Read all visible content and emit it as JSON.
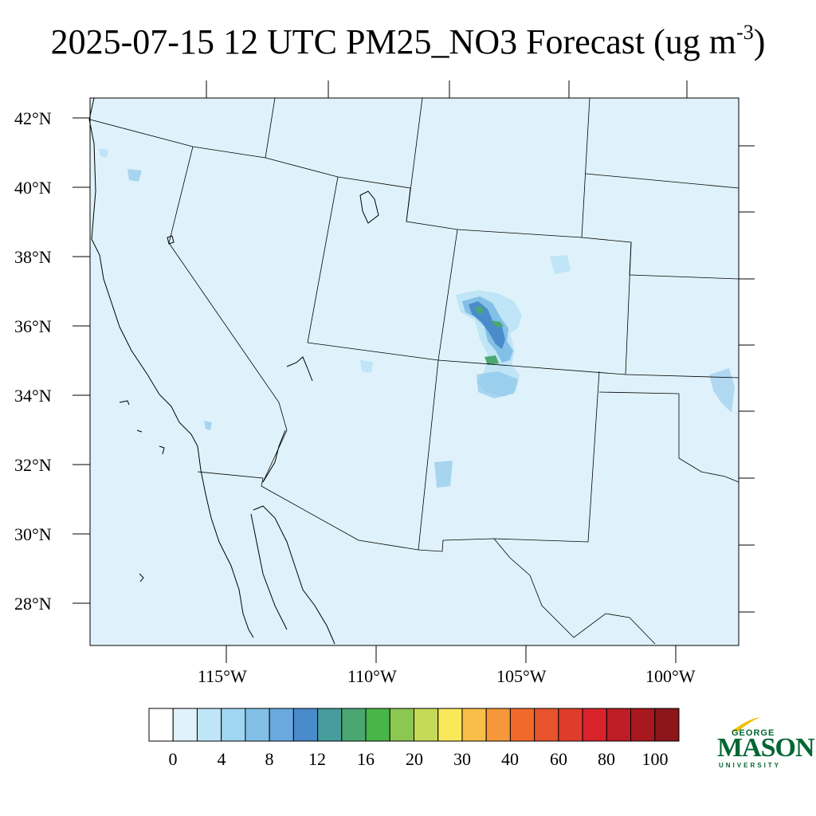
{
  "title": {
    "main": "2025-07-15 12 UTC PM25_NO3 Forecast (ug m",
    "exponent": "-3",
    "close": ")"
  },
  "lat_labels": [
    "42°N",
    "40°N",
    "38°N",
    "36°N",
    "34°N",
    "32°N",
    "30°N",
    "28°N"
  ],
  "lon_labels": [
    "115°W",
    "110°W",
    "105°W",
    "100°W"
  ],
  "colorbar": {
    "colors": [
      "#ffffff",
      "#dff2fb",
      "#bfe5f6",
      "#9fd7f3",
      "#82c0e7",
      "#6aa9df",
      "#4a8ccb",
      "#479c9c",
      "#4aa772",
      "#47b548",
      "#8cc751",
      "#c5da58",
      "#f8e95b",
      "#f8be49",
      "#f5973a",
      "#f26a2b",
      "#e6532c",
      "#e03c2d",
      "#d8232b",
      "#bd1d24",
      "#a8191f",
      "#8c161a"
    ],
    "labels": [
      "0",
      "4",
      "8",
      "12",
      "16",
      "20",
      "30",
      "40",
      "60",
      "80",
      "100"
    ]
  },
  "map": {
    "background_color": "#dff2fb",
    "plume_colors": [
      "#bfe5f6",
      "#82c0e7",
      "#4a8ccb",
      "#4aa772"
    ]
  },
  "logo": {
    "top": "GEORGE",
    "main": "MASON",
    "bottom": "UNIVERSITY",
    "color": "#006633",
    "accent": "#f0c000"
  }
}
